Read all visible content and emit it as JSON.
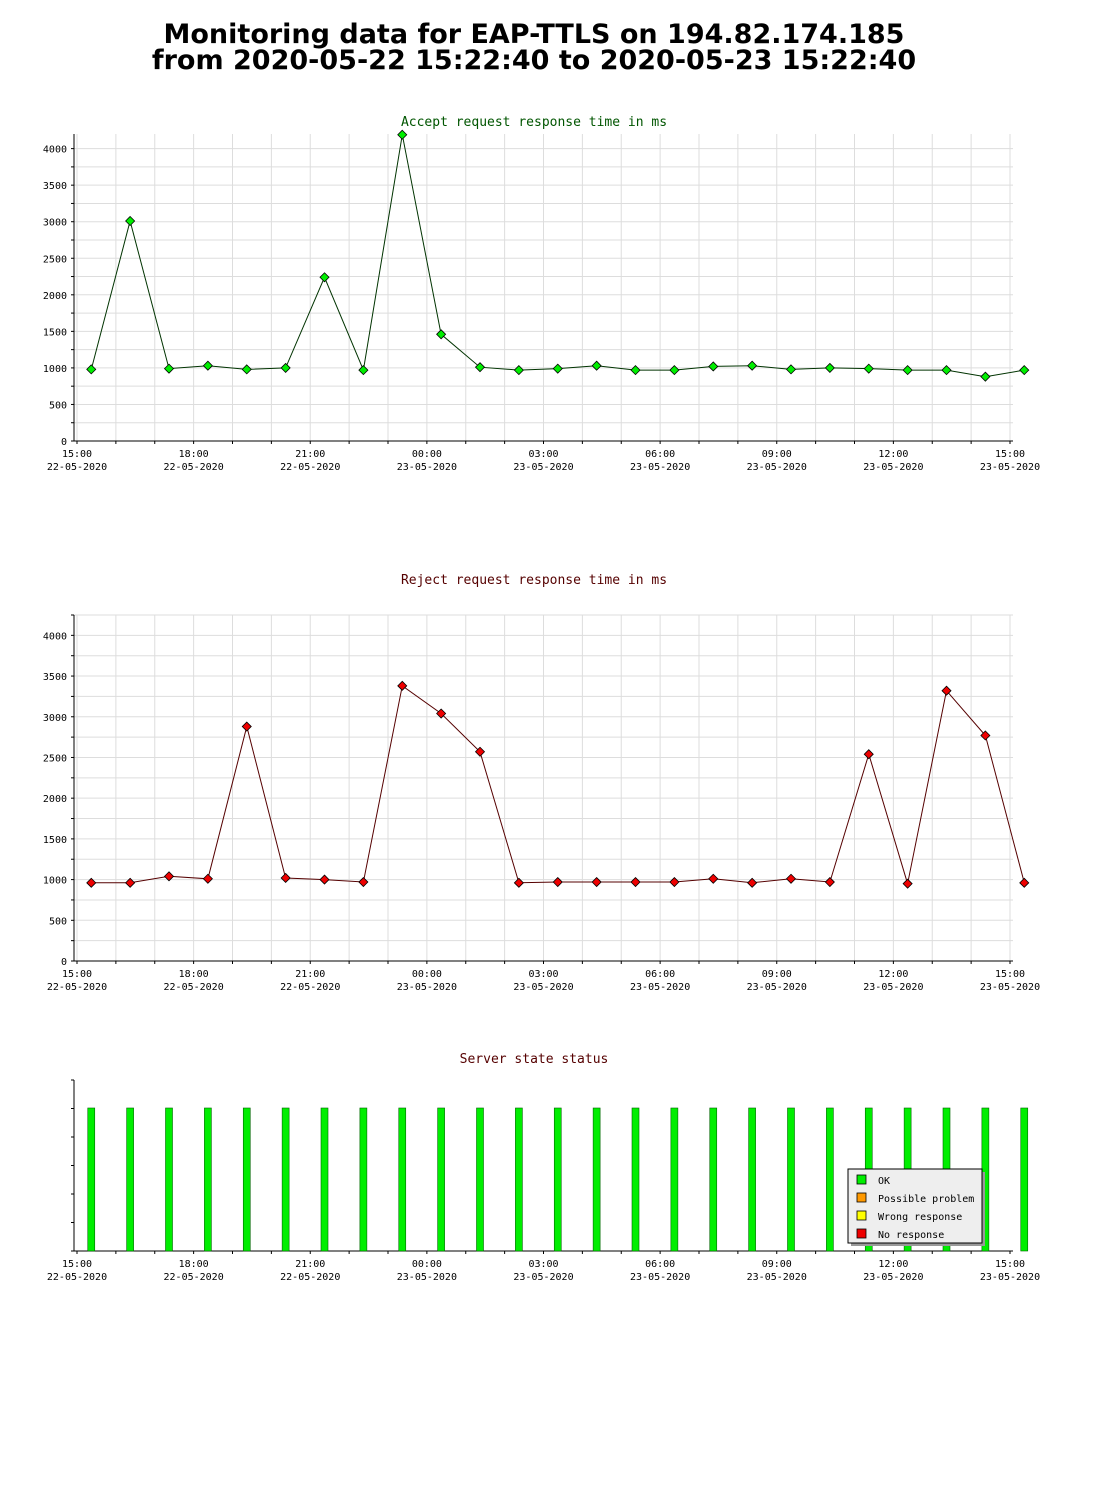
{
  "page": {
    "title_line1": "Monitoring data for EAP-TTLS on 194.82.174.185",
    "title_line2": "from 2020-05-22 15:22:40 to 2020-05-23 15:22:40"
  },
  "colors": {
    "accept_line": "#003300",
    "accept_marker": "#00ee00",
    "reject_line": "#550000",
    "reject_marker": "#ee0000",
    "status_ok": "#00ee00",
    "accept_title": "#005500",
    "reject_title": "#550000",
    "status_title": "#550000",
    "grid": "#dddddd"
  },
  "x_axis": {
    "ticks": [
      {
        "time": "15:00",
        "date": "22-05-2020"
      },
      {
        "time": "18:00",
        "date": "22-05-2020"
      },
      {
        "time": "21:00",
        "date": "22-05-2020"
      },
      {
        "time": "00:00",
        "date": "23-05-2020"
      },
      {
        "time": "03:00",
        "date": "23-05-2020"
      },
      {
        "time": "06:00",
        "date": "23-05-2020"
      },
      {
        "time": "09:00",
        "date": "23-05-2020"
      },
      {
        "time": "12:00",
        "date": "23-05-2020"
      },
      {
        "time": "15:00",
        "date": "23-05-2020"
      }
    ]
  },
  "chart_data": [
    {
      "type": "line",
      "title": "Accept request response time in ms",
      "ylim": [
        0,
        4200
      ],
      "yticks": [
        0,
        500,
        1000,
        1500,
        2000,
        2500,
        3000,
        3500,
        4000
      ],
      "x": [
        "2020-05-22 15:22",
        "2020-05-22 16:22",
        "2020-05-22 17:22",
        "2020-05-22 18:22",
        "2020-05-22 19:22",
        "2020-05-22 20:22",
        "2020-05-22 21:22",
        "2020-05-22 22:22",
        "2020-05-22 23:22",
        "2020-05-23 00:22",
        "2020-05-23 01:22",
        "2020-05-23 02:22",
        "2020-05-23 03:22",
        "2020-05-23 04:22",
        "2020-05-23 05:22",
        "2020-05-23 06:22",
        "2020-05-23 07:22",
        "2020-05-23 08:22",
        "2020-05-23 09:22",
        "2020-05-23 10:22",
        "2020-05-23 11:22",
        "2020-05-23 12:22",
        "2020-05-23 13:22",
        "2020-05-23 14:22",
        "2020-05-23 15:22"
      ],
      "values": [
        980,
        3010,
        990,
        1030,
        980,
        1000,
        2240,
        970,
        4190,
        1460,
        1010,
        970,
        990,
        1030,
        970,
        970,
        1020,
        1030,
        980,
        1000,
        990,
        970,
        970,
        880,
        970
      ],
      "grid": true
    },
    {
      "type": "line",
      "title": "Reject request response time in ms",
      "ylim": [
        0,
        4250
      ],
      "yticks": [
        0,
        500,
        1000,
        1500,
        2000,
        2500,
        3000,
        3500,
        4000
      ],
      "x": [
        "2020-05-22 15:22",
        "2020-05-22 16:22",
        "2020-05-22 17:22",
        "2020-05-22 18:22",
        "2020-05-22 19:22",
        "2020-05-22 20:22",
        "2020-05-22 21:22",
        "2020-05-22 22:22",
        "2020-05-22 23:22",
        "2020-05-23 00:22",
        "2020-05-23 01:22",
        "2020-05-23 02:22",
        "2020-05-23 03:22",
        "2020-05-23 04:22",
        "2020-05-23 05:22",
        "2020-05-23 06:22",
        "2020-05-23 07:22",
        "2020-05-23 08:22",
        "2020-05-23 09:22",
        "2020-05-23 10:22",
        "2020-05-23 11:22",
        "2020-05-23 12:22",
        "2020-05-23 13:22",
        "2020-05-23 14:22",
        "2020-05-23 15:22"
      ],
      "values": [
        960,
        960,
        1040,
        1010,
        2880,
        1020,
        1000,
        970,
        3380,
        3040,
        2570,
        960,
        970,
        970,
        970,
        970,
        1010,
        960,
        1010,
        970,
        2540,
        950,
        3320,
        2770,
        960
      ],
      "grid": true
    },
    {
      "type": "bar",
      "title": "Server state status",
      "x": [
        "2020-05-22 15:22",
        "2020-05-22 16:22",
        "2020-05-22 17:22",
        "2020-05-22 18:22",
        "2020-05-22 19:22",
        "2020-05-22 20:22",
        "2020-05-22 21:22",
        "2020-05-22 22:22",
        "2020-05-22 23:22",
        "2020-05-23 00:22",
        "2020-05-23 01:22",
        "2020-05-23 02:22",
        "2020-05-23 03:22",
        "2020-05-23 04:22",
        "2020-05-23 05:22",
        "2020-05-23 06:22",
        "2020-05-23 07:22",
        "2020-05-23 08:22",
        "2020-05-23 09:22",
        "2020-05-23 10:22",
        "2020-05-23 11:22",
        "2020-05-23 12:22",
        "2020-05-23 13:22",
        "2020-05-23 14:22",
        "2020-05-23 15:22"
      ],
      "values": [
        "OK",
        "OK",
        "OK",
        "OK",
        "OK",
        "OK",
        "OK",
        "OK",
        "OK",
        "OK",
        "OK",
        "OK",
        "OK",
        "OK",
        "OK",
        "OK",
        "OK",
        "OK",
        "OK",
        "OK",
        "OK",
        "OK",
        "OK",
        "OK",
        "OK"
      ],
      "legend": {
        "placement": "bottom-right",
        "entries": [
          {
            "label": "OK",
            "color": "#00ee00"
          },
          {
            "label": "Possible problem",
            "color": "#ff9900"
          },
          {
            "label": "Wrong response",
            "color": "#ffff00"
          },
          {
            "label": "No response",
            "color": "#ee0000"
          }
        ]
      }
    }
  ]
}
